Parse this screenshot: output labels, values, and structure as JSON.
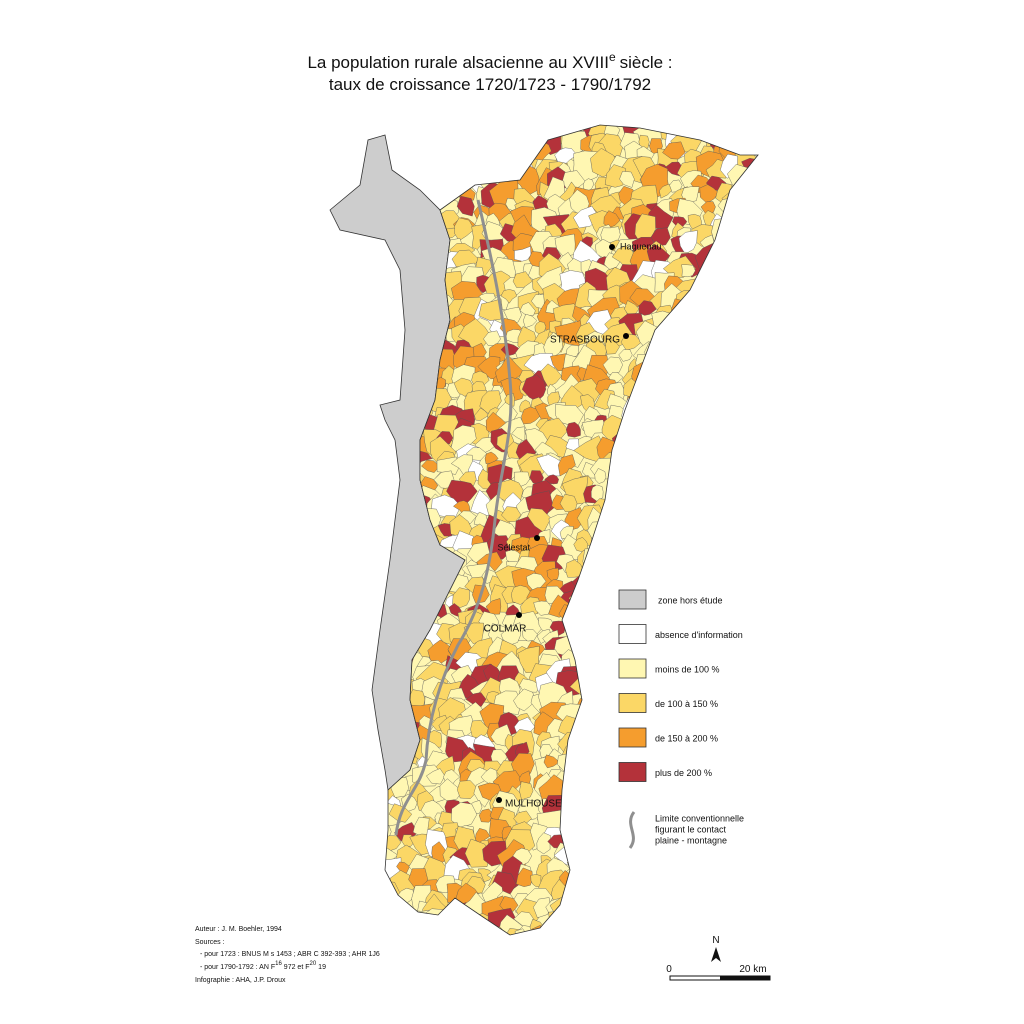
{
  "title": {
    "line1": "La population rurale alsacienne au XVIII",
    "line1_sup": "e",
    "line1_end": "siècle :",
    "line2": "taux de croissance 1720/1723 - 1790/1792"
  },
  "cities": [
    "Haguenau",
    "STRASBOURG",
    "Sélestat",
    "COLMAR",
    "MULHOUSE"
  ],
  "legend": {
    "items": [
      {
        "label": "zone hors étude",
        "color": "#cdcdcd"
      },
      {
        "label": "absence d'information",
        "color": "#ffffff"
      },
      {
        "label": "moins de 100 %",
        "color": "#fff7b2"
      },
      {
        "label": "de 100 à 150 %",
        "color": "#fbd766"
      },
      {
        "label": "de 150 à 200 %",
        "color": "#f59d2e"
      },
      {
        "label": "plus de 200 %",
        "color": "#b4323a"
      }
    ],
    "line_label": [
      "Limite conventionnelle",
      "figurant le contact",
      "plaine - montagne"
    ]
  },
  "credits": {
    "author": "Auteur : J. M. Boehler, 1994",
    "sources": "Sources :",
    "src1": "- pour 1723 : BNUS M s 1453 ; ABR C 392-393 ; AHR 1J6",
    "src2a": "- pour 1790-1792 : AN F",
    "src2_sup1": "16",
    "src2b": "972 et F",
    "src2_sup2": "20",
    "src2c": "19",
    "infographie": "Infographie : AHA, J.P. Droux"
  },
  "scale": {
    "north": "N",
    "zero": "0",
    "km": "20 km"
  }
}
